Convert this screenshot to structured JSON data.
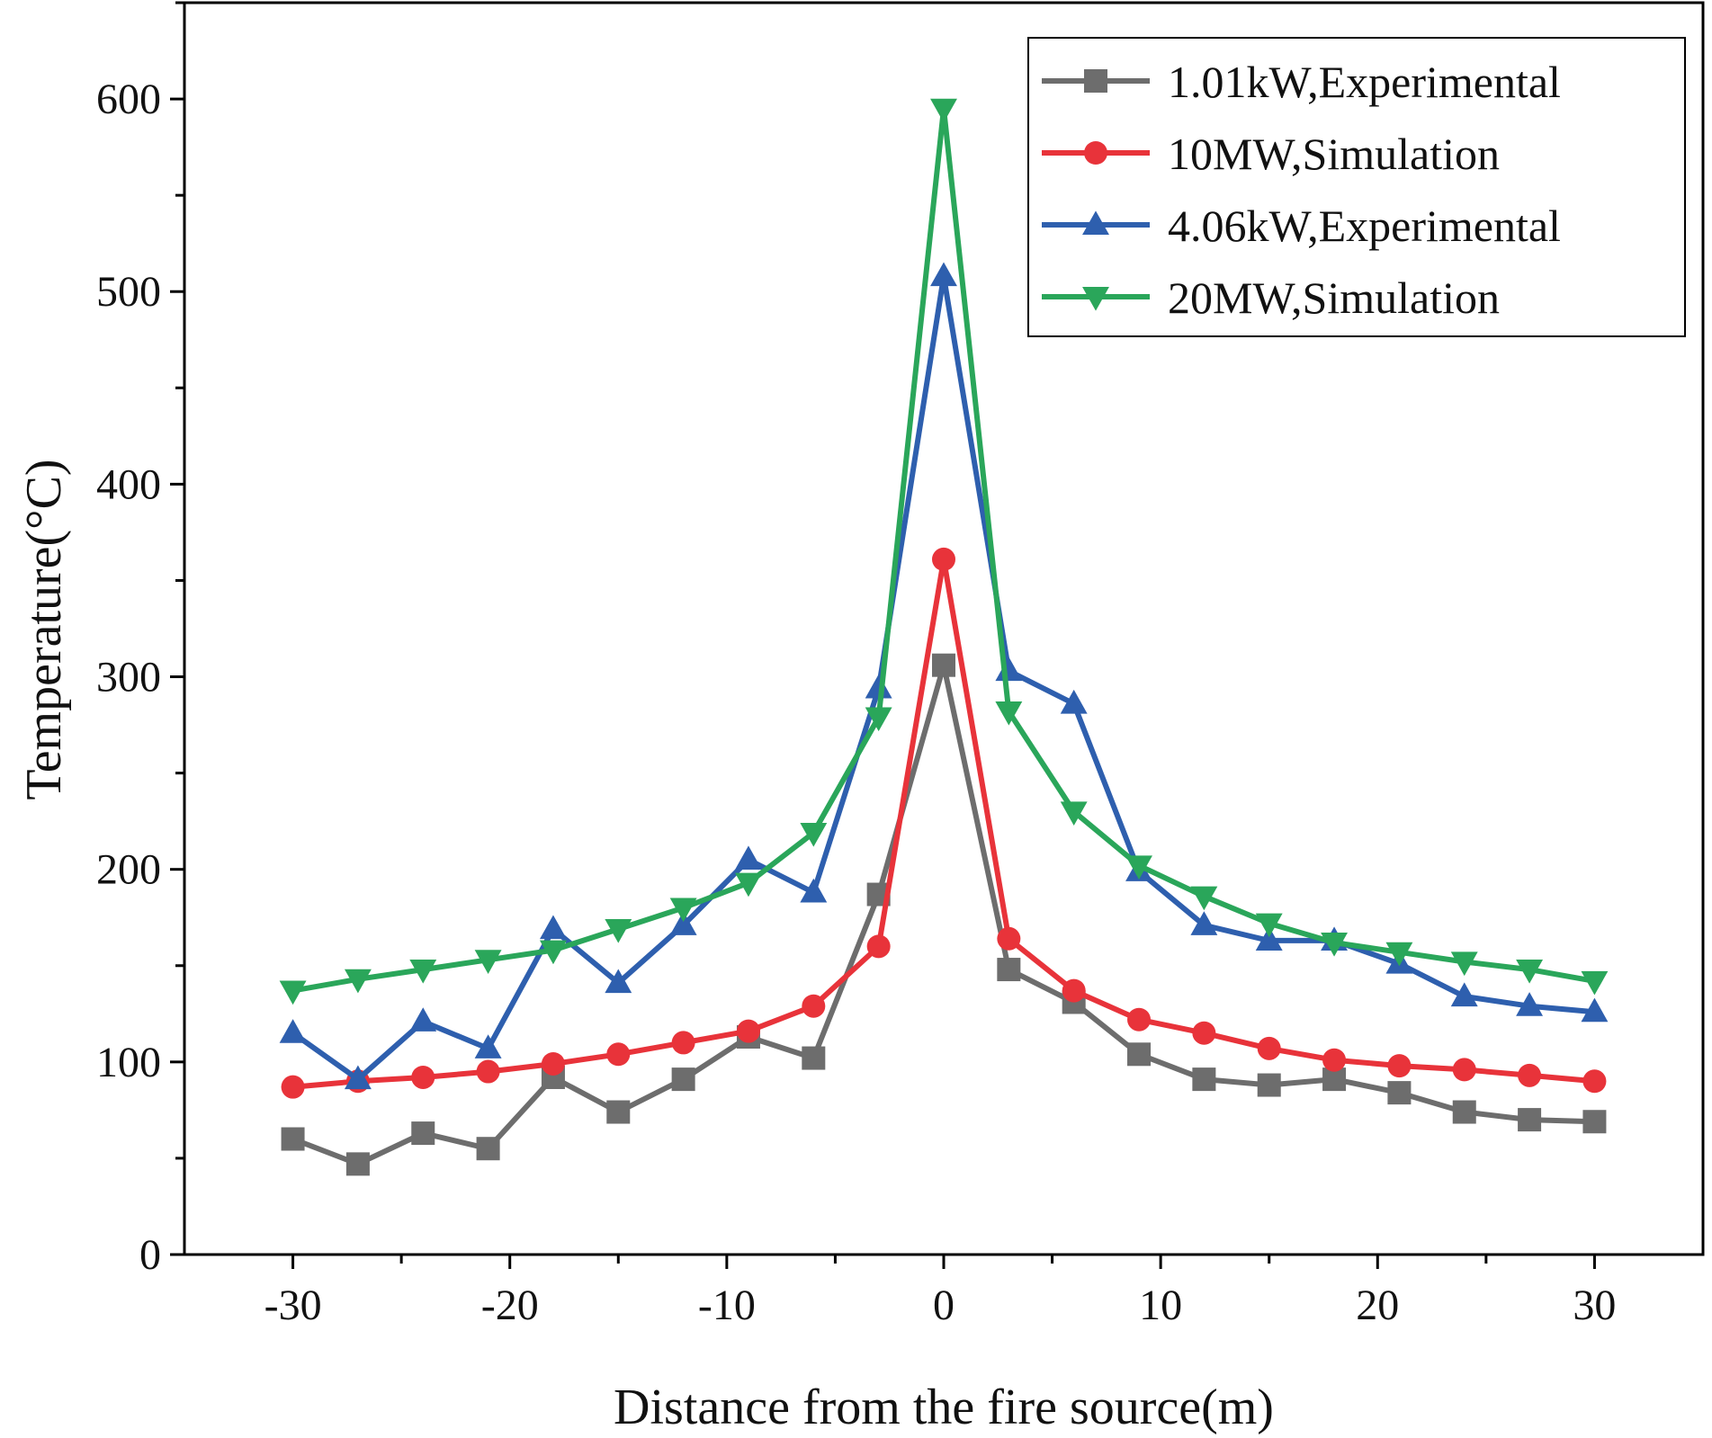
{
  "chart_data": {
    "type": "line",
    "xlabel": "Distance from the fire source(m)",
    "ylabel": "Temperature(°C)",
    "xlim": [
      -35,
      35
    ],
    "ylim": [
      0,
      650
    ],
    "xticks": [
      -30,
      -20,
      -10,
      0,
      10,
      20,
      30
    ],
    "yticks": [
      0,
      100,
      200,
      300,
      400,
      500,
      600
    ],
    "xtick_labels": [
      "-30",
      "-20",
      "-10",
      "0",
      "10",
      "20",
      "30"
    ],
    "ytick_labels": [
      "0",
      "100",
      "200",
      "300",
      "400",
      "500",
      "600"
    ],
    "grid": false,
    "legend_position": "top-right",
    "x": [
      -30,
      -27,
      -24,
      -21,
      -18,
      -15,
      -12,
      -9,
      -6,
      -3,
      0,
      3,
      6,
      9,
      12,
      15,
      18,
      21,
      24,
      27,
      30
    ],
    "series": [
      {
        "name": "1.01kW,Experimental",
        "color": "#6d6d6d",
        "marker": "square",
        "values": [
          60,
          47,
          63,
          55,
          92,
          74,
          91,
          113,
          102,
          187,
          306,
          148,
          131,
          104,
          91,
          88,
          91,
          84,
          74,
          70,
          69
        ]
      },
      {
        "name": "10MW,Simulation",
        "color": "#e8333a",
        "marker": "circle",
        "values": [
          87,
          90,
          92,
          95,
          99,
          104,
          110,
          116,
          129,
          160,
          361,
          164,
          137,
          122,
          115,
          107,
          101,
          98,
          96,
          93,
          90
        ]
      },
      {
        "name": "4.06kW,Experimental",
        "color": "#2e5fae",
        "marker": "triangle-up",
        "values": [
          115,
          91,
          121,
          107,
          169,
          141,
          171,
          205,
          188,
          294,
          508,
          303,
          286,
          199,
          171,
          163,
          163,
          151,
          134,
          129,
          126
        ]
      },
      {
        "name": "20MW,Simulation",
        "color": "#2aa65a",
        "marker": "triangle-down",
        "values": [
          137,
          143,
          148,
          153,
          158,
          169,
          180,
          193,
          219,
          279,
          595,
          282,
          230,
          202,
          186,
          172,
          162,
          157,
          152,
          148,
          142
        ]
      }
    ]
  }
}
